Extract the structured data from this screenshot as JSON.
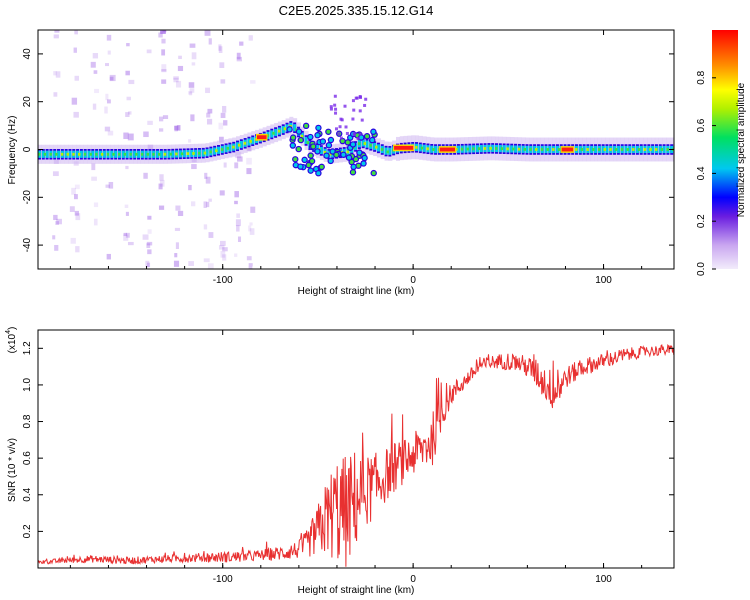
{
  "title": "C2E5.2025.335.15.12.G14",
  "chart_data": [
    {
      "type": "heatmap",
      "xlabel": "Height of straight line (km)",
      "ylabel": "Frequency (Hz)",
      "xlim": [
        -197,
        137
      ],
      "ylim": [
        -50,
        50
      ],
      "xticks": [
        -100,
        0,
        100
      ],
      "xtick_labels": [
        "-100",
        "0",
        "100"
      ],
      "yticks": [
        -40,
        -20,
        0,
        20,
        40
      ],
      "ytick_labels": [
        "-40",
        "-20",
        "0",
        "20",
        "40"
      ],
      "ridge": {
        "x": [
          -190,
          -160,
          -130,
          -110,
          -95,
          -80,
          -70,
          -64,
          -55,
          -45,
          -35,
          -28,
          -20,
          -14,
          -8,
          0,
          10,
          20,
          40,
          60,
          80,
          100,
          137
        ],
        "freq": [
          -2,
          -2,
          -2,
          -1.5,
          1,
          5,
          8,
          10,
          2,
          -2,
          -1,
          3,
          1,
          -1,
          0.5,
          1,
          0,
          0,
          0.5,
          0,
          0,
          0,
          0
        ],
        "hot_segments": [
          [
            -82,
            -77
          ],
          [
            -10,
            0
          ],
          [
            14,
            22
          ],
          [
            78,
            84
          ]
        ]
      },
      "colorbar": {
        "label": "Normalized spectral amplitude",
        "range": [
          0,
          1
        ],
        "ticks": [
          0.0,
          0.2,
          0.4,
          0.6,
          0.8
        ],
        "tick_labels": [
          "0.0",
          "0.2",
          "0.4",
          "0.6",
          "0.8"
        ]
      }
    },
    {
      "type": "line",
      "xlabel": "Height of straight line (km)",
      "ylabel": "SNR (10 * v/v)",
      "multiplier_label": "(x10",
      "multiplier_exp": "4",
      "xlim": [
        -197,
        137
      ],
      "ylim": [
        0,
        1.3
      ],
      "xticks": [
        -100,
        0,
        100
      ],
      "xtick_labels": [
        "-100",
        "0",
        "100"
      ],
      "yticks": [
        0.2,
        0.4,
        0.6,
        0.8,
        1.0,
        1.2
      ],
      "ytick_labels": [
        "0.2",
        "0.4",
        "0.6",
        "0.8",
        "1.0",
        "1.2"
      ],
      "color": "#e83030",
      "series": [
        {
          "name": "SNR",
          "x": [
            -197,
            -170,
            -150,
            -130,
            -100,
            -90,
            -80,
            -70,
            -60,
            -55,
            -50,
            -45,
            -40,
            -35,
            -30,
            -25,
            -20,
            -15,
            -10,
            -5,
            0,
            5,
            10,
            15,
            20,
            25,
            30,
            35,
            40,
            45,
            50,
            55,
            60,
            65,
            70,
            75,
            80,
            90,
            100,
            110,
            120,
            130,
            137
          ],
          "y": [
            0.03,
            0.05,
            0.04,
            0.05,
            0.06,
            0.06,
            0.07,
            0.08,
            0.1,
            0.14,
            0.2,
            0.28,
            0.32,
            0.3,
            0.38,
            0.42,
            0.45,
            0.5,
            0.55,
            0.58,
            0.62,
            0.65,
            0.7,
            0.85,
            0.95,
            1.0,
            1.05,
            1.1,
            1.12,
            1.13,
            1.13,
            1.12,
            1.1,
            1.06,
            1.0,
            0.96,
            1.04,
            1.1,
            1.13,
            1.16,
            1.18,
            1.19,
            1.19
          ],
          "spread": [
            0.01,
            0.02,
            0.02,
            0.02,
            0.03,
            0.03,
            0.03,
            0.04,
            0.05,
            0.08,
            0.15,
            0.22,
            0.3,
            0.32,
            0.28,
            0.2,
            0.18,
            0.15,
            0.14,
            0.12,
            0.12,
            0.12,
            0.15,
            0.1,
            0.06,
            0.05,
            0.04,
            0.04,
            0.04,
            0.04,
            0.05,
            0.05,
            0.06,
            0.08,
            0.1,
            0.12,
            0.06,
            0.05,
            0.04,
            0.04,
            0.03,
            0.03,
            0.03
          ]
        }
      ]
    }
  ]
}
